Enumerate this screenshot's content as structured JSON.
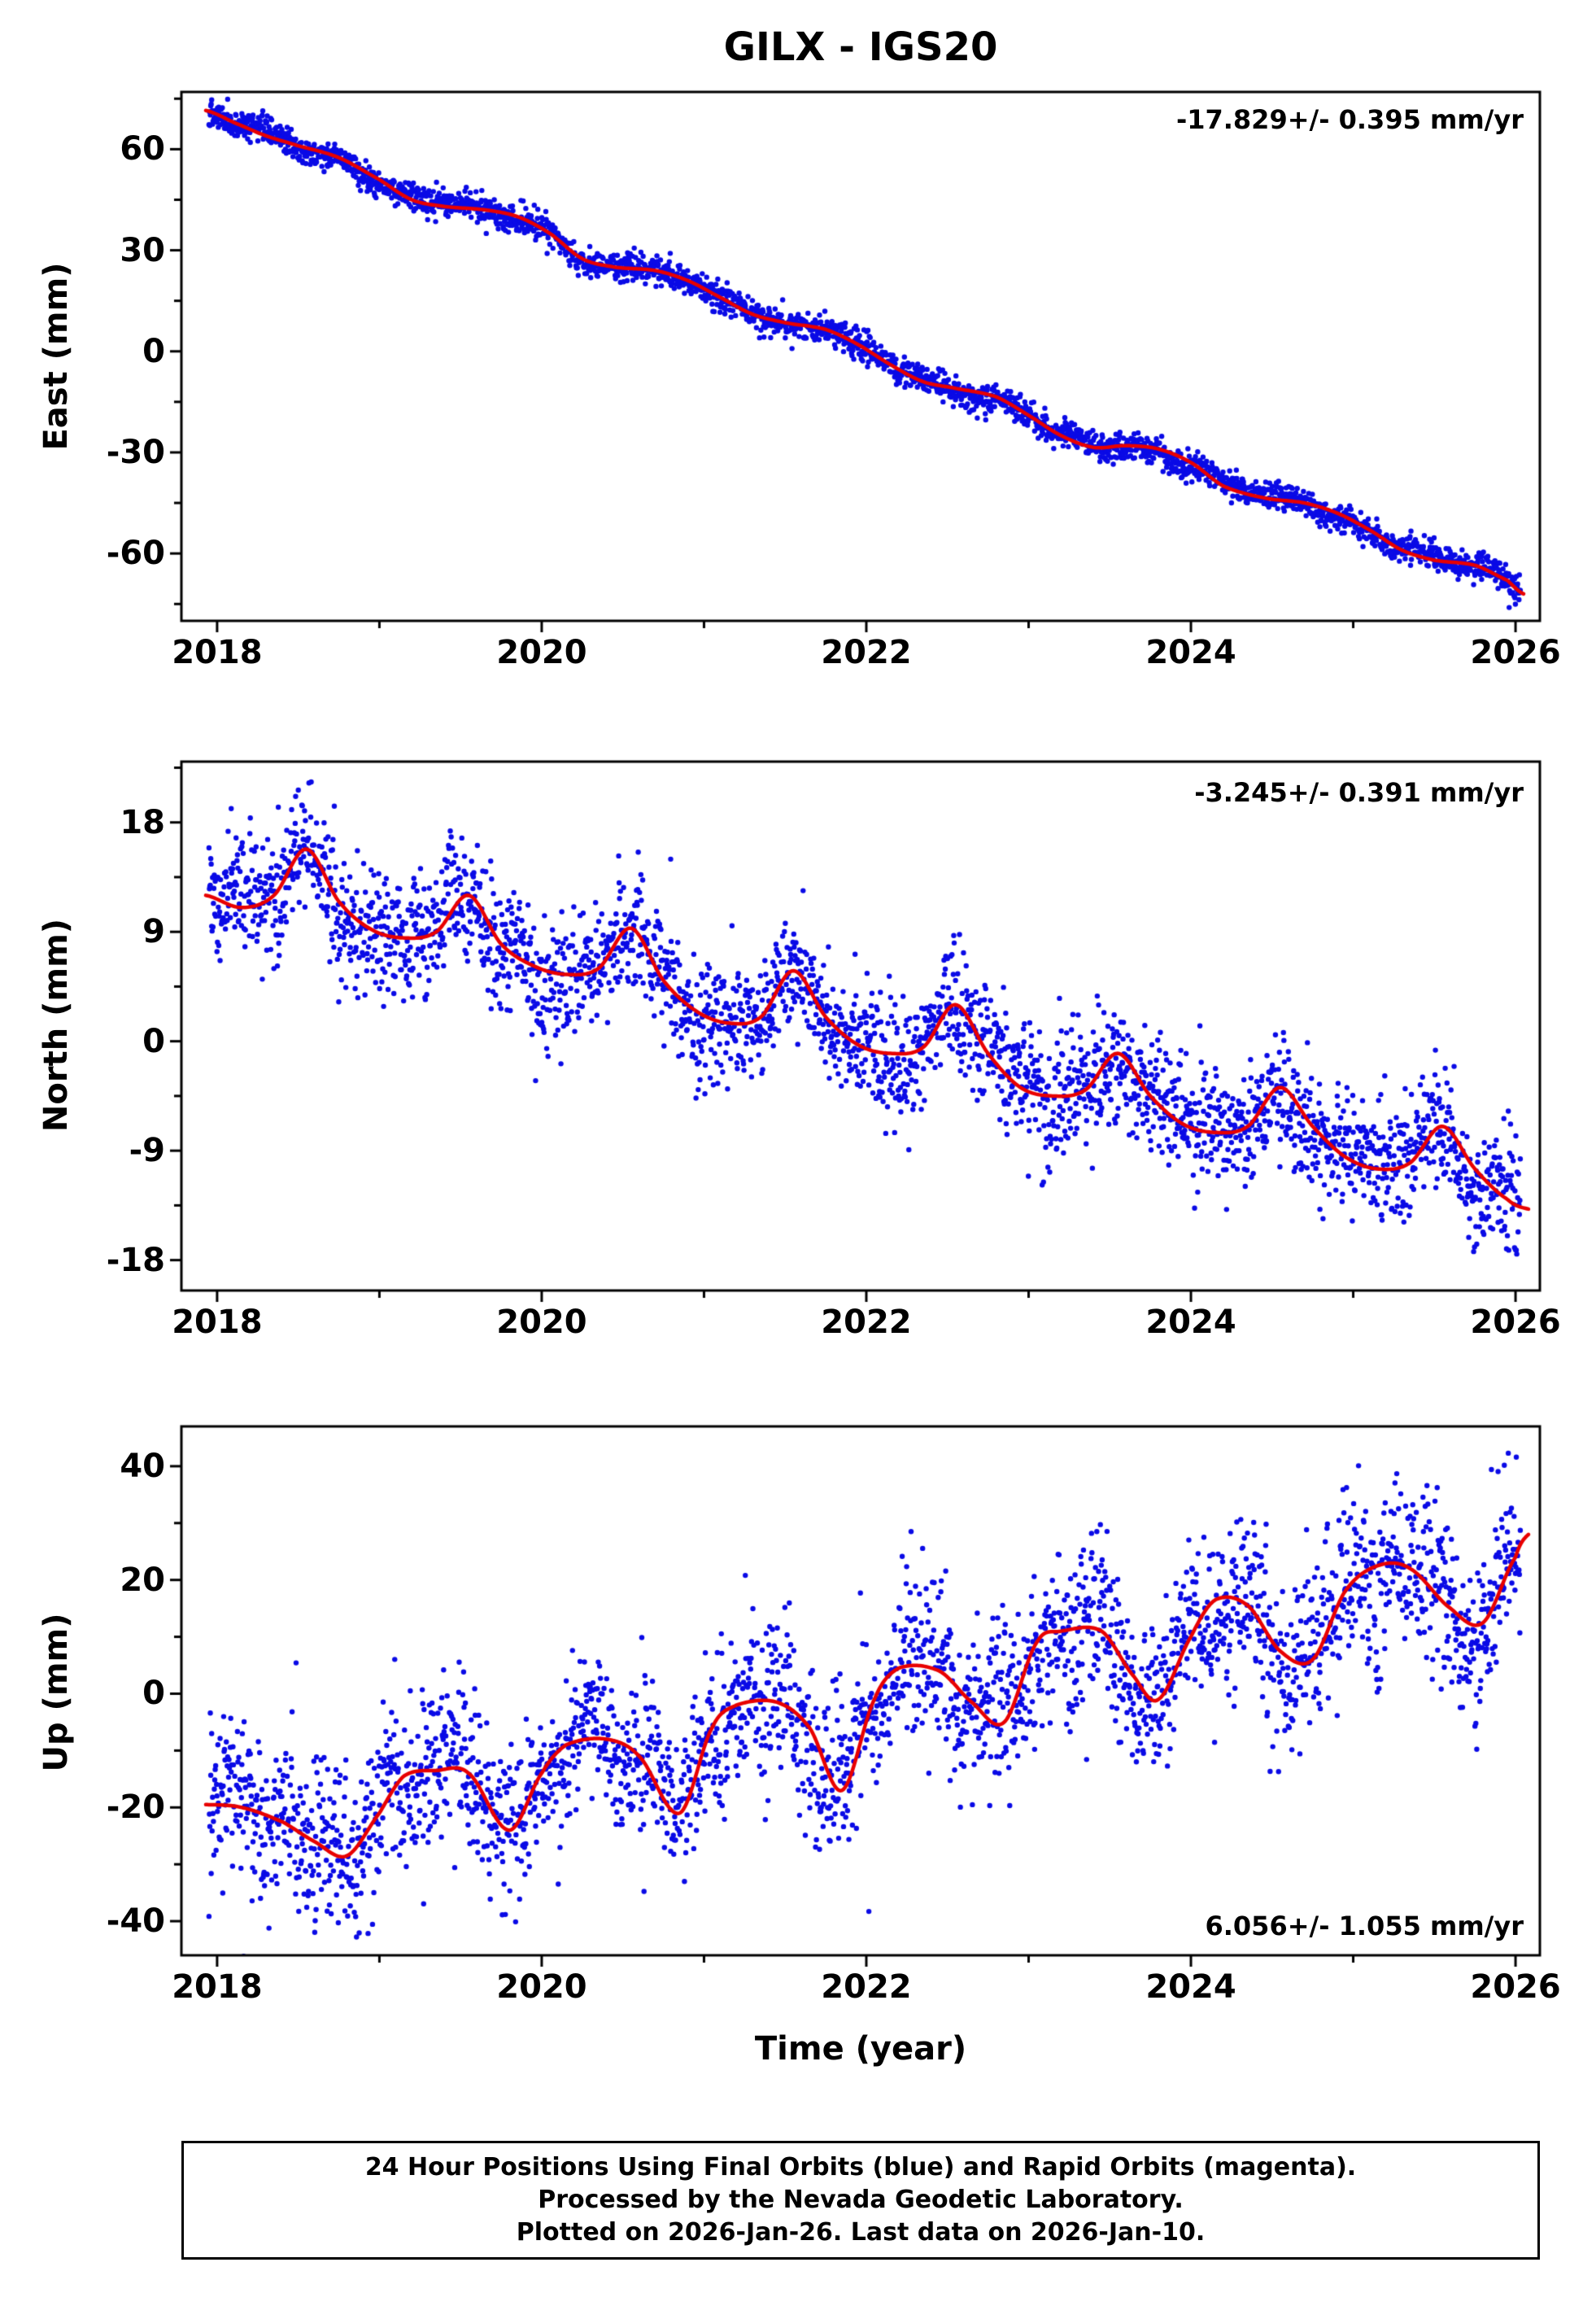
{
  "title": "GILX - IGS20",
  "xlabel": "Time (year)",
  "colors": {
    "points": "#0a0ae6",
    "model_line": "#e80000",
    "axis": "#000000",
    "background": "#ffffff"
  },
  "caption": {
    "line1": "24 Hour Positions Using Final Orbits (blue) and Rapid Orbits (magenta).",
    "line2": "Processed by the Nevada Geodetic Laboratory.",
    "line3": "Plotted on 2026-Jan-26. Last data on 2026-Jan-10."
  },
  "chart_data": [
    {
      "id": "east",
      "type": "scatter",
      "ylabel": "East (mm)",
      "annotation": "-17.829+/- 0.395 mm/yr",
      "annotation_corner": "top-right",
      "velocity_mm_per_yr": -17.829,
      "velocity_sigma": 0.395,
      "x_range": [
        2017.78,
        2026.15
      ],
      "y_range": [
        -80,
        77
      ],
      "x_ticks": [
        2018,
        2020,
        2022,
        2024,
        2026
      ],
      "y_ticks": [
        60,
        30,
        0,
        -30,
        -60
      ],
      "data_start": 2017.95,
      "data_end": 2026.03,
      "noise_sd": 2.0,
      "wander_amp": 1.1,
      "seed": 101,
      "model_line": [
        [
          2017.93,
          71.5
        ],
        [
          2018.1,
          68
        ],
        [
          2018.3,
          64
        ],
        [
          2018.5,
          61
        ],
        [
          2018.75,
          57.5
        ],
        [
          2019.0,
          51
        ],
        [
          2019.2,
          45
        ],
        [
          2019.4,
          43
        ],
        [
          2019.65,
          42
        ],
        [
          2019.85,
          40
        ],
        [
          2020.05,
          35
        ],
        [
          2020.25,
          27.5
        ],
        [
          2020.45,
          25
        ],
        [
          2020.7,
          24
        ],
        [
          2020.9,
          21
        ],
        [
          2021.1,
          16
        ],
        [
          2021.3,
          11
        ],
        [
          2021.5,
          8.5
        ],
        [
          2021.75,
          6.5
        ],
        [
          2021.95,
          2
        ],
        [
          2022.15,
          -4
        ],
        [
          2022.35,
          -9
        ],
        [
          2022.55,
          -11
        ],
        [
          2022.8,
          -13.5
        ],
        [
          2023.0,
          -19
        ],
        [
          2023.2,
          -25
        ],
        [
          2023.4,
          -28.5
        ],
        [
          2023.6,
          -28
        ],
        [
          2023.8,
          -29
        ],
        [
          2024.0,
          -33
        ],
        [
          2024.2,
          -40
        ],
        [
          2024.45,
          -43.5
        ],
        [
          2024.7,
          -45
        ],
        [
          2024.9,
          -48
        ],
        [
          2025.1,
          -53
        ],
        [
          2025.3,
          -59
        ],
        [
          2025.5,
          -62
        ],
        [
          2025.75,
          -63.5
        ],
        [
          2025.95,
          -68
        ],
        [
          2026.05,
          -72
        ]
      ]
    },
    {
      "id": "north",
      "type": "scatter",
      "ylabel": "North (mm)",
      "annotation": "-3.245+/- 0.391 mm/yr",
      "annotation_corner": "top-right",
      "velocity_mm_per_yr": -3.245,
      "velocity_sigma": 0.391,
      "x_range": [
        2017.78,
        2026.15
      ],
      "y_range": [
        -20.5,
        23
      ],
      "x_ticks": [
        2018,
        2020,
        2022,
        2024,
        2026
      ],
      "y_ticks": [
        18,
        9,
        0,
        -9,
        -18
      ],
      "data_start": 2017.95,
      "data_end": 2026.03,
      "noise_sd": 2.5,
      "wander_amp": 1.8,
      "seed": 202,
      "model_line": [
        [
          2017.93,
          12
        ],
        [
          2018.15,
          11
        ],
        [
          2018.35,
          12
        ],
        [
          2018.55,
          15.8
        ],
        [
          2018.75,
          11.5
        ],
        [
          2018.95,
          9.2
        ],
        [
          2019.15,
          8.5
        ],
        [
          2019.35,
          9
        ],
        [
          2019.55,
          12
        ],
        [
          2019.75,
          8
        ],
        [
          2019.95,
          6.2
        ],
        [
          2020.15,
          5.5
        ],
        [
          2020.35,
          6
        ],
        [
          2020.55,
          9.3
        ],
        [
          2020.75,
          5
        ],
        [
          2020.95,
          2.5
        ],
        [
          2021.15,
          1.5
        ],
        [
          2021.35,
          2
        ],
        [
          2021.55,
          5.8
        ],
        [
          2021.75,
          2
        ],
        [
          2021.95,
          -0.3
        ],
        [
          2022.15,
          -1
        ],
        [
          2022.35,
          -0.5
        ],
        [
          2022.55,
          3
        ],
        [
          2022.75,
          -1
        ],
        [
          2022.95,
          -3.8
        ],
        [
          2023.15,
          -4.5
        ],
        [
          2023.35,
          -4
        ],
        [
          2023.55,
          -1
        ],
        [
          2023.75,
          -4.5
        ],
        [
          2023.95,
          -6.8
        ],
        [
          2024.15,
          -7.5
        ],
        [
          2024.35,
          -7
        ],
        [
          2024.55,
          -3.8
        ],
        [
          2024.75,
          -7
        ],
        [
          2024.95,
          -9.5
        ],
        [
          2025.15,
          -10.5
        ],
        [
          2025.35,
          -10
        ],
        [
          2025.55,
          -7
        ],
        [
          2025.75,
          -10.5
        ],
        [
          2025.95,
          -13
        ],
        [
          2026.08,
          -13.8
        ]
      ]
    },
    {
      "id": "up",
      "type": "scatter",
      "ylabel": "Up (mm)",
      "annotation": "6.056+/- 1.055 mm/yr",
      "annotation_corner": "bottom-right",
      "velocity_mm_per_yr": 6.056,
      "velocity_sigma": 1.055,
      "x_range": [
        2017.78,
        2026.15
      ],
      "y_range": [
        -46,
        47
      ],
      "x_ticks": [
        2018,
        2020,
        2022,
        2024,
        2026
      ],
      "y_ticks": [
        40,
        20,
        0,
        -20,
        -40
      ],
      "data_start": 2017.95,
      "data_end": 2026.03,
      "noise_sd": 7.0,
      "wander_amp": 3.5,
      "seed": 303,
      "model_line": [
        [
          2017.93,
          -19.5
        ],
        [
          2018.15,
          -20
        ],
        [
          2018.4,
          -22.5
        ],
        [
          2018.6,
          -26
        ],
        [
          2018.8,
          -28.5
        ],
        [
          2019.0,
          -21
        ],
        [
          2019.15,
          -14.5
        ],
        [
          2019.35,
          -13.5
        ],
        [
          2019.55,
          -14
        ],
        [
          2019.8,
          -24
        ],
        [
          2020.0,
          -14
        ],
        [
          2020.15,
          -9
        ],
        [
          2020.4,
          -8
        ],
        [
          2020.6,
          -11
        ],
        [
          2020.85,
          -21
        ],
        [
          2021.05,
          -6
        ],
        [
          2021.2,
          -2
        ],
        [
          2021.45,
          -1.5
        ],
        [
          2021.65,
          -6
        ],
        [
          2021.85,
          -17
        ],
        [
          2022.05,
          -1
        ],
        [
          2022.2,
          4.5
        ],
        [
          2022.45,
          4
        ],
        [
          2022.65,
          -1.5
        ],
        [
          2022.85,
          -5
        ],
        [
          2023.05,
          9
        ],
        [
          2023.2,
          11
        ],
        [
          2023.45,
          11
        ],
        [
          2023.65,
          3
        ],
        [
          2023.8,
          -1
        ],
        [
          2024.0,
          10
        ],
        [
          2024.15,
          16.5
        ],
        [
          2024.35,
          15.5
        ],
        [
          2024.55,
          7.5
        ],
        [
          2024.75,
          6
        ],
        [
          2024.95,
          18
        ],
        [
          2025.15,
          22.5
        ],
        [
          2025.35,
          22
        ],
        [
          2025.6,
          15
        ],
        [
          2025.8,
          12.5
        ],
        [
          2026.0,
          24
        ],
        [
          2026.08,
          28
        ]
      ]
    }
  ]
}
